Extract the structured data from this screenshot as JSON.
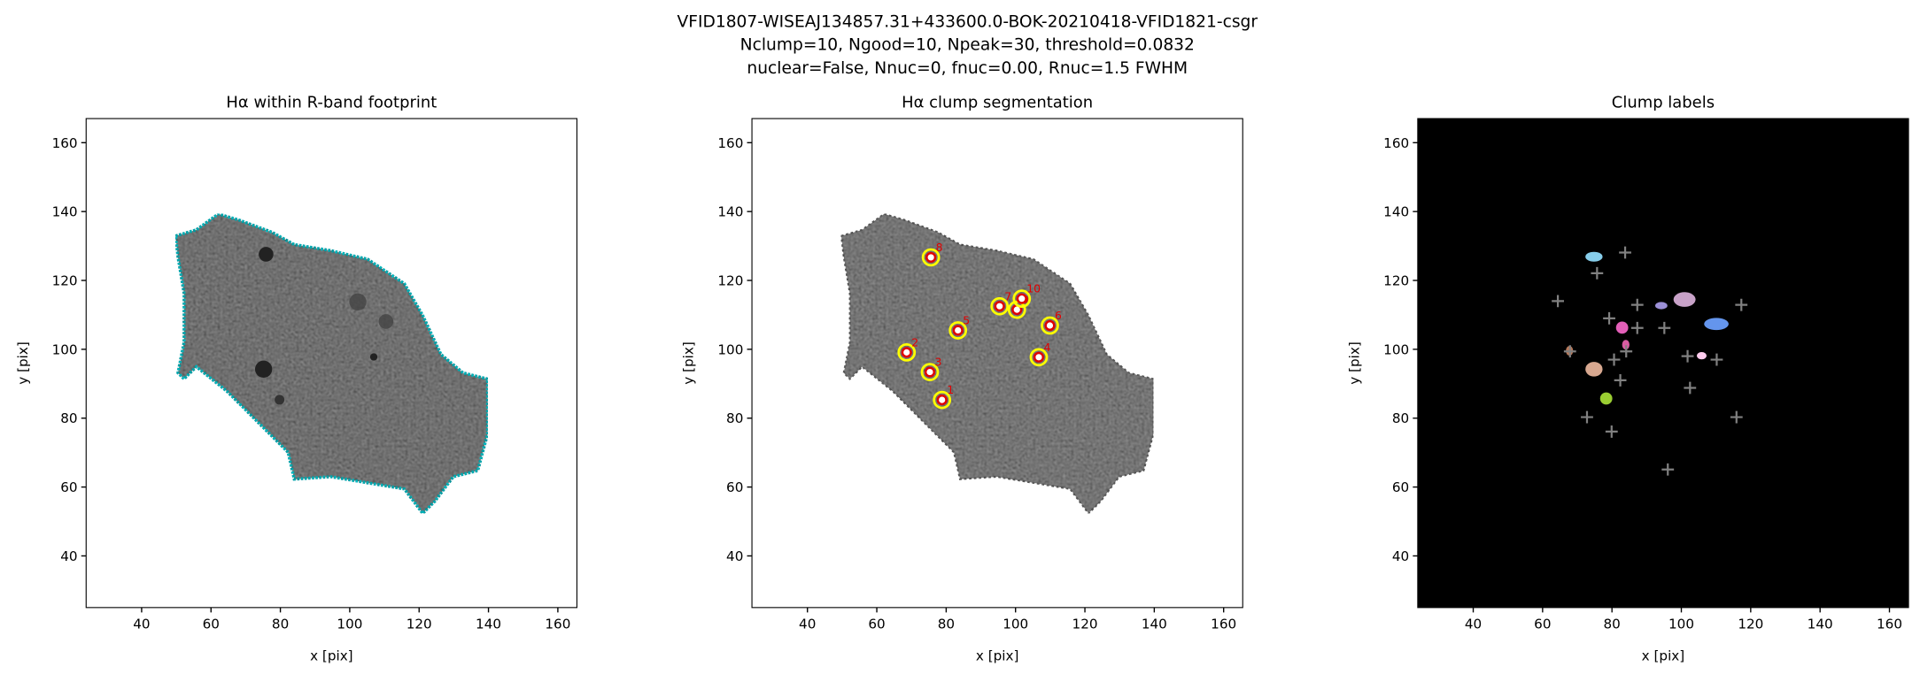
{
  "figure": {
    "title": [
      "VFID1807-WISEAJ134857.31+433600.0-BOK-20210418-VFID1821-csgr",
      "Nclump=10, Ngood=10, Npeak=30, threshold=0.0832",
      "nuclear=False, Nnuc=0, fnuc=0.00, Rnuc=1.5 FWHM"
    ]
  },
  "chart_data": [
    {
      "type": "image",
      "title": "Hα within R-band footprint",
      "xlabel": "x [pix]",
      "ylabel": "y [pix]",
      "xlim": [
        24,
        165.5
      ],
      "ylim": [
        25,
        167
      ],
      "xticks": [
        40,
        60,
        80,
        100,
        120,
        140,
        160
      ],
      "yticks": [
        40,
        60,
        80,
        100,
        120,
        140,
        160
      ],
      "background": "#ffffff"
    },
    {
      "type": "clumps",
      "title": "Hα clump segmentation",
      "xlabel": "x [pix]",
      "ylabel": "y [pix]",
      "xlim": [
        24,
        165.5
      ],
      "ylim": [
        25,
        167
      ],
      "xticks": [
        40,
        60,
        80,
        100,
        120,
        140,
        160
      ],
      "yticks": [
        40,
        60,
        80,
        100,
        120,
        140,
        160
      ],
      "background": "#ffffff",
      "labels": [
        "1",
        "2",
        "3",
        "4",
        "5",
        "6",
        "7",
        "8",
        "9",
        "10"
      ],
      "x": [
        78.8,
        68.6,
        75.3,
        106.7,
        83.4,
        109.9,
        95.4,
        75.6,
        100.4,
        101.8
      ],
      "y": [
        85.3,
        99.1,
        93.4,
        97.7,
        105.5,
        106.9,
        112.5,
        126.7,
        111.5,
        114.7
      ],
      "color": "#e00000",
      "contour_color": "#ffff00"
    },
    {
      "type": "peaks",
      "title": "Clump labels",
      "xlabel": "x [pix]",
      "ylabel": "y [pix]",
      "xlim": [
        24,
        165.5
      ],
      "ylim": [
        25,
        167
      ],
      "xticks": [
        40,
        60,
        80,
        100,
        120,
        140,
        160
      ],
      "yticks": [
        40,
        60,
        80,
        100,
        120,
        140,
        160
      ],
      "background": "#000000",
      "x": [
        83.8,
        75.7,
        64.4,
        87.3,
        117.3,
        79.2,
        87.3,
        95.1,
        67.9,
        84.1,
        101.8,
        110.2,
        80.6,
        82.4,
        102.5,
        72.8,
        79.9,
        115.9,
        96.1
      ],
      "y": [
        128.1,
        122.1,
        114,
        112.9,
        112.9,
        109,
        106.2,
        106.2,
        99.4,
        99.4,
        98,
        97,
        97,
        91,
        88.8,
        80.3,
        76.1,
        80.3,
        65.1
      ],
      "color": "#808080"
    }
  ]
}
